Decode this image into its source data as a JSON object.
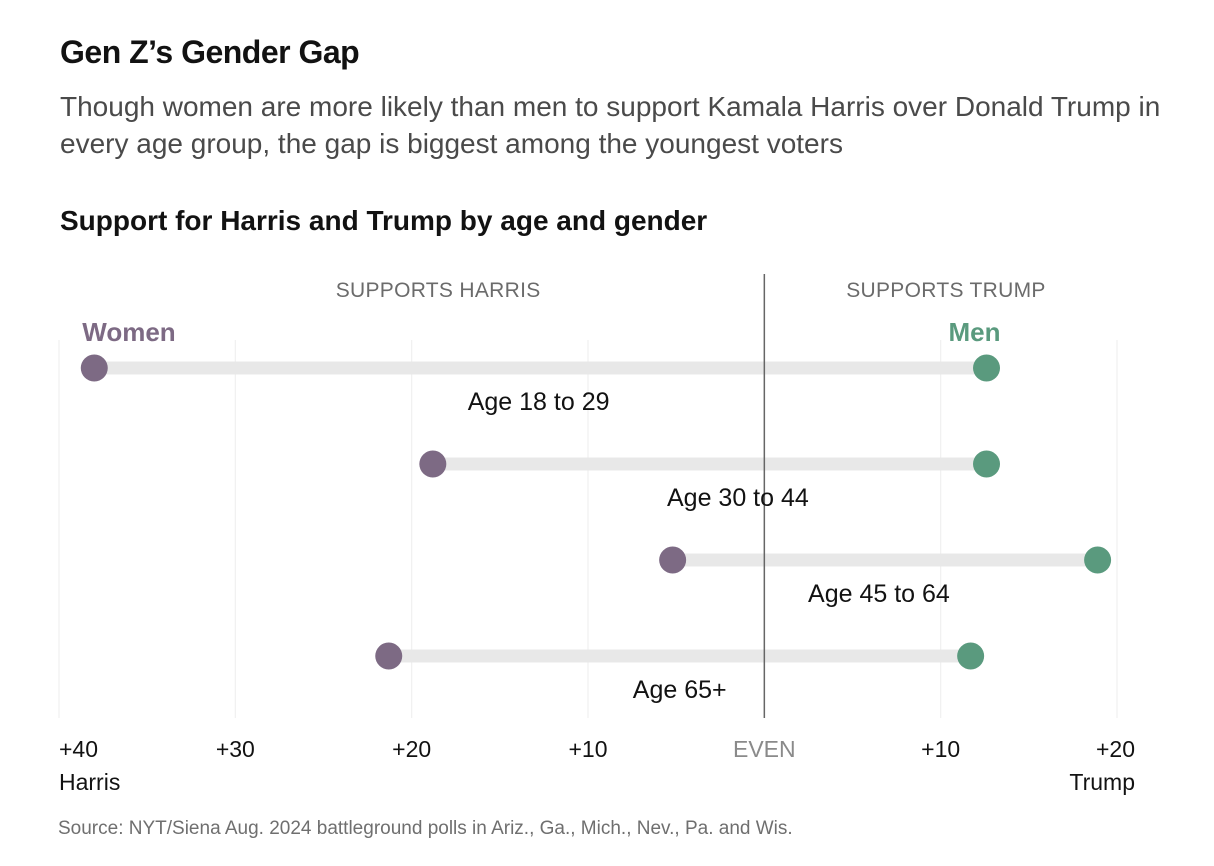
{
  "header": {
    "title": "Gen Z’s Gender Gap",
    "subtitle": "Though women are more likely than men to support Kamala Harris over Donald Trump in every age group, the gap is biggest among the youngest voters"
  },
  "footer": {
    "source": "Source: NYT/Siena Aug. 2024 battleground polls in Ariz., Ga., Mich., Nev., Pa. and Wis."
  },
  "chart_data": {
    "type": "dumbbell",
    "title": "Support for Harris and Trump by age and gender",
    "xlim": [
      -40,
      20
    ],
    "grid": true,
    "side_labels": {
      "left": "SUPPORTS HARRIS",
      "right": "SUPPORTS TRUMP"
    },
    "x_ticks": [
      {
        "value": -40,
        "label": "+40",
        "sublabel": "Harris"
      },
      {
        "value": -30,
        "label": "+30",
        "sublabel": ""
      },
      {
        "value": -20,
        "label": "+20",
        "sublabel": ""
      },
      {
        "value": -10,
        "label": "+10",
        "sublabel": ""
      },
      {
        "value": 0,
        "label": "EVEN",
        "sublabel": ""
      },
      {
        "value": 10,
        "label": "+10",
        "sublabel": ""
      },
      {
        "value": 20,
        "label": "+20",
        "sublabel": "Trump"
      }
    ],
    "series": [
      {
        "name": "Women",
        "color": "#7d6a84"
      },
      {
        "name": "Men",
        "color": "#5a9a7e"
      }
    ],
    "categories": [
      "Age 18 to 29",
      "Age 30 to 44",
      "Age 45 to 64",
      "Age 65+"
    ],
    "rows": [
      {
        "label": "Age 18 to 29",
        "women": -38,
        "men": 12.6
      },
      {
        "label": "Age 30 to 44",
        "women": -18.8,
        "men": 12.6
      },
      {
        "label": "Age 45 to 64",
        "women": -5.2,
        "men": 18.9
      },
      {
        "label": "Age 65+",
        "women": -21.3,
        "men": 11.7
      }
    ],
    "colors": {
      "bar": "#e8e8e8",
      "zero_line": "#666666",
      "grid": "#f0f0f0"
    }
  }
}
